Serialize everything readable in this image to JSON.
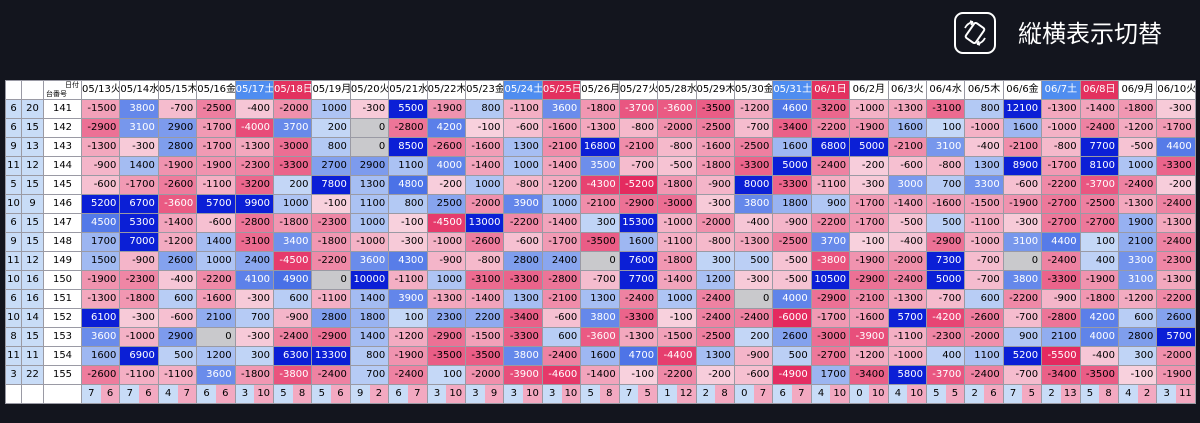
{
  "toggle": {
    "label": "縦横表示切替",
    "icon": "rotate-icon"
  },
  "table": {
    "corner_top": "日付",
    "corner_bottom": "台番号",
    "dates": [
      {
        "label": "05/13火",
        "type": "wd"
      },
      {
        "label": "05/14水",
        "type": "wd"
      },
      {
        "label": "05/15木",
        "type": "wd"
      },
      {
        "label": "05/16金",
        "type": "wd"
      },
      {
        "label": "05/17土",
        "type": "sat"
      },
      {
        "label": "05/18日",
        "type": "sun"
      },
      {
        "label": "05/19月",
        "type": "wd"
      },
      {
        "label": "05/20火",
        "type": "wd"
      },
      {
        "label": "05/21水",
        "type": "wd"
      },
      {
        "label": "05/22木",
        "type": "wd"
      },
      {
        "label": "05/23金",
        "type": "wd"
      },
      {
        "label": "05/24土",
        "type": "sat"
      },
      {
        "label": "05/25日",
        "type": "sun"
      },
      {
        "label": "05/26月",
        "type": "wd"
      },
      {
        "label": "05/27火",
        "type": "wd"
      },
      {
        "label": "05/28水",
        "type": "wd"
      },
      {
        "label": "05/29木",
        "type": "wd"
      },
      {
        "label": "05/30金",
        "type": "wd"
      },
      {
        "label": "05/31土",
        "type": "sat"
      },
      {
        "label": "06/1日",
        "type": "sun"
      },
      {
        "label": "06/2月",
        "type": "wd"
      },
      {
        "label": "06/3火",
        "type": "wd"
      },
      {
        "label": "06/4水",
        "type": "wd"
      },
      {
        "label": "06/5木",
        "type": "wd"
      },
      {
        "label": "06/6金",
        "type": "wd"
      },
      {
        "label": "06/7土",
        "type": "sat"
      },
      {
        "label": "06/8日",
        "type": "sun"
      },
      {
        "label": "06/9月",
        "type": "wd"
      },
      {
        "label": "06/10火",
        "type": "wd"
      }
    ],
    "rows": [
      {
        "a": "6",
        "b": "20",
        "m": "141",
        "v": [
          "-1500",
          "3800",
          "-700",
          "-2500",
          "-400",
          "-2000",
          "1000",
          "-300",
          "5500",
          "-1900",
          "800",
          "-1100",
          "3600",
          "-1800",
          "-3700",
          "-3600",
          "-3500",
          "-1200",
          "4600",
          "-3200",
          "-1000",
          "-1300",
          "-3100",
          "800",
          "12100",
          "-1300",
          "-1400",
          "-1800",
          "-300"
        ]
      },
      {
        "a": "6",
        "b": "15",
        "m": "142",
        "v": [
          "-2900",
          "3100",
          "2900",
          "-1700",
          "-4000",
          "3700",
          "200",
          "0",
          "-2800",
          "4200",
          "-100",
          "-600",
          "-1600",
          "-1300",
          "-800",
          "-2000",
          "-2500",
          "-700",
          "-3400",
          "-2200",
          "-1900",
          "1600",
          "100",
          "-1000",
          "1600",
          "-1000",
          "-2400",
          "-1200",
          "-1700"
        ]
      },
      {
        "a": "9",
        "b": "13",
        "m": "143",
        "v": [
          "-1300",
          "-300",
          "2800",
          "-1700",
          "-1300",
          "-3000",
          "800",
          "0",
          "8500",
          "-2600",
          "-1600",
          "1300",
          "-2100",
          "16800",
          "-2100",
          "-800",
          "-1600",
          "-2500",
          "1600",
          "6800",
          "5000",
          "-2100",
          "3100",
          "-400",
          "-2100",
          "-800",
          "7700",
          "-500",
          "4400"
        ]
      },
      {
        "a": "11",
        "b": "12",
        "m": "144",
        "v": [
          "-900",
          "1400",
          "-1900",
          "-1900",
          "-2300",
          "-3300",
          "2700",
          "2900",
          "1100",
          "4000",
          "-1400",
          "1000",
          "-1400",
          "3500",
          "-700",
          "-500",
          "-1800",
          "-3300",
          "5000",
          "-2400",
          "-200",
          "-600",
          "-800",
          "1300",
          "8900",
          "-1700",
          "8100",
          "1000",
          "-3300"
        ]
      },
      {
        "a": "5",
        "b": "15",
        "m": "145",
        "v": [
          "-600",
          "-1700",
          "-2600",
          "-1100",
          "-3200",
          "200",
          "7800",
          "1300",
          "4800",
          "-200",
          "1000",
          "-800",
          "-1200",
          "-4300",
          "-5200",
          "-1800",
          "-900",
          "8000",
          "-3300",
          "-1100",
          "-300",
          "3000",
          "700",
          "3300",
          "-600",
          "-2200",
          "-3700",
          "-2400",
          "-200"
        ]
      },
      {
        "a": "10",
        "b": "9",
        "m": "146",
        "v": [
          "5200",
          "6700",
          "-3600",
          "5700",
          "9900",
          "1000",
          "-100",
          "1100",
          "800",
          "2500",
          "-2000",
          "3900",
          "1000",
          "-2100",
          "-2900",
          "-3000",
          "-300",
          "3800",
          "1800",
          "900",
          "-1700",
          "-1400",
          "-1600",
          "-1500",
          "-1900",
          "-2700",
          "-2500",
          "-1300",
          "-2400"
        ]
      },
      {
        "a": "6",
        "b": "15",
        "m": "147",
        "v": [
          "4500",
          "5300",
          "-1400",
          "-600",
          "-2800",
          "-1800",
          "-2300",
          "1000",
          "-100",
          "-4500",
          "13000",
          "-2200",
          "-1400",
          "300",
          "15300",
          "-1000",
          "-2000",
          "-400",
          "-900",
          "-2200",
          "-1700",
          "-500",
          "500",
          "-1100",
          "-300",
          "-2700",
          "-2700",
          "1900",
          "-1300"
        ]
      },
      {
        "a": "9",
        "b": "15",
        "m": "148",
        "v": [
          "1700",
          "7000",
          "-1200",
          "1400",
          "-3100",
          "3400",
          "-1800",
          "-1000",
          "-300",
          "-1000",
          "-2600",
          "-600",
          "-1700",
          "-3500",
          "1600",
          "-1100",
          "-800",
          "-1300",
          "-2500",
          "3700",
          "-100",
          "-400",
          "-2900",
          "-1000",
          "3100",
          "4400",
          "100",
          "2100",
          "-2400"
        ]
      },
      {
        "a": "11",
        "b": "12",
        "m": "149",
        "v": [
          "1500",
          "-900",
          "2600",
          "1000",
          "2400",
          "-4500",
          "-2200",
          "3600",
          "4300",
          "-900",
          "-800",
          "2800",
          "2400",
          "0",
          "7600",
          "-1800",
          "300",
          "500",
          "-500",
          "-3800",
          "-1900",
          "-2000",
          "7300",
          "-700",
          "0",
          "-2400",
          "400",
          "3300",
          "-2300"
        ]
      },
      {
        "a": "10",
        "b": "16",
        "m": "150",
        "v": [
          "-1900",
          "-2300",
          "-400",
          "-2200",
          "4100",
          "4900",
          "0",
          "10000",
          "-1100",
          "1000",
          "-3100",
          "-3300",
          "-2800",
          "-700",
          "7700",
          "-1400",
          "1200",
          "-300",
          "-500",
          "10500",
          "-2900",
          "-2400",
          "5000",
          "-700",
          "3800",
          "-3300",
          "-1900",
          "3100",
          "-1300"
        ]
      },
      {
        "a": "6",
        "b": "16",
        "m": "151",
        "v": [
          "-1300",
          "-1800",
          "600",
          "-1600",
          "-300",
          "600",
          "-1100",
          "1400",
          "3900",
          "-1300",
          "-1400",
          "1300",
          "-2100",
          "1300",
          "-2400",
          "1000",
          "-2400",
          "0",
          "4000",
          "-2900",
          "-2100",
          "-1300",
          "-700",
          "600",
          "-2200",
          "-900",
          "-1800",
          "-1200",
          "-2200"
        ]
      },
      {
        "a": "10",
        "b": "14",
        "m": "152",
        "v": [
          "6100",
          "-300",
          "-600",
          "2100",
          "700",
          "-900",
          "2800",
          "1800",
          "100",
          "2300",
          "2200",
          "-3400",
          "-600",
          "3800",
          "-3300",
          "-100",
          "-2400",
          "-2400",
          "-6000",
          "-1700",
          "-1600",
          "5700",
          "-4200",
          "-2600",
          "-700",
          "-2800",
          "4200",
          "600",
          "2600"
        ]
      },
      {
        "a": "8",
        "b": "15",
        "m": "153",
        "v": [
          "3600",
          "-1000",
          "2900",
          "0",
          "-300",
          "-2400",
          "-2900",
          "1400",
          "-1200",
          "-2900",
          "-1500",
          "-3300",
          "600",
          "-3600",
          "-1300",
          "-1500",
          "-2500",
          "200",
          "2600",
          "-3000",
          "-3900",
          "-1100",
          "-2300",
          "-2000",
          "900",
          "2100",
          "4000",
          "2800",
          "5700"
        ]
      },
      {
        "a": "11",
        "b": "11",
        "m": "154",
        "v": [
          "1600",
          "6900",
          "500",
          "1200",
          "300",
          "6300",
          "13300",
          "800",
          "-1900",
          "-3500",
          "-3500",
          "3800",
          "-2400",
          "1600",
          "4700",
          "-4400",
          "1300",
          "-900",
          "500",
          "-2700",
          "-1200",
          "-1000",
          "400",
          "1100",
          "5200",
          "-5500",
          "-400",
          "300",
          "-2000"
        ]
      },
      {
        "a": "3",
        "b": "22",
        "m": "155",
        "v": [
          "-2600",
          "-1100",
          "-1100",
          "3600",
          "-1800",
          "-3800",
          "-2400",
          "700",
          "-2400",
          "100",
          "-2000",
          "-3900",
          "-4600",
          "-1400",
          "-100",
          "-2200",
          "-200",
          "-600",
          "-4900",
          "1700",
          "-3400",
          "5800",
          "-3700",
          "-2400",
          "-700",
          "-3400",
          "-3500",
          "-100",
          "-1900"
        ]
      }
    ],
    "footer": [
      [
        "7",
        "6"
      ],
      [
        "7",
        "6"
      ],
      [
        "4",
        "7"
      ],
      [
        "6",
        "6"
      ],
      [
        "3",
        "10"
      ],
      [
        "5",
        "8"
      ],
      [
        "5",
        "6"
      ],
      [
        "9",
        "2"
      ],
      [
        "6",
        "7"
      ],
      [
        "3",
        "10"
      ],
      [
        "3",
        "9"
      ],
      [
        "3",
        "10"
      ],
      [
        "3",
        "10"
      ],
      [
        "5",
        "8"
      ],
      [
        "7",
        "5"
      ],
      [
        "1",
        "12"
      ],
      [
        "2",
        "8"
      ],
      [
        "0",
        "7"
      ],
      [
        "6",
        "7"
      ],
      [
        "4",
        "10"
      ],
      [
        "0",
        "10"
      ],
      [
        "4",
        "10"
      ],
      [
        "5",
        "5"
      ],
      [
        "2",
        "6"
      ],
      [
        "7",
        "5"
      ],
      [
        "2",
        "13"
      ],
      [
        "5",
        "8"
      ],
      [
        "4",
        "2"
      ],
      [
        "3",
        "11"
      ]
    ]
  }
}
